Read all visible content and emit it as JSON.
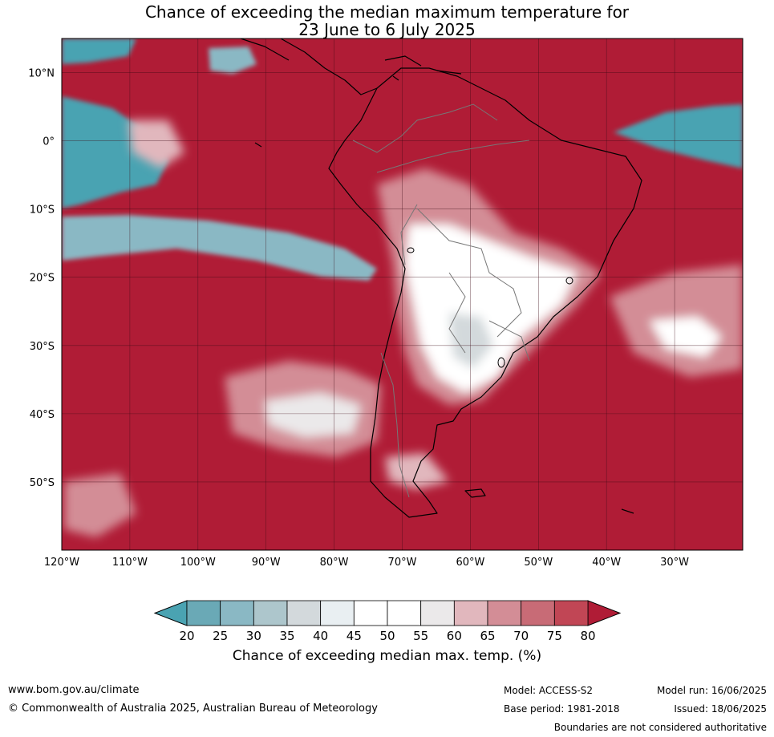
{
  "title": {
    "line1": "Chance of exceeding the median maximum temperature for",
    "line2": "23 June to 6 July 2025"
  },
  "map": {
    "lon_range": [
      -120,
      -20
    ],
    "lat_range": [
      -60,
      15
    ],
    "lon_ticks": [
      {
        "value": -120,
        "label": "120°W"
      },
      {
        "value": -110,
        "label": "110°W"
      },
      {
        "value": -100,
        "label": "100°W"
      },
      {
        "value": -90,
        "label": "90°W"
      },
      {
        "value": -80,
        "label": "80°W"
      },
      {
        "value": -70,
        "label": "70°W"
      },
      {
        "value": -60,
        "label": "60°W"
      },
      {
        "value": -50,
        "label": "50°W"
      },
      {
        "value": -40,
        "label": "40°W"
      },
      {
        "value": -30,
        "label": "30°W"
      }
    ],
    "lat_ticks": [
      {
        "value": 10,
        "label": "10°N"
      },
      {
        "value": 0,
        "label": "0°"
      },
      {
        "value": -10,
        "label": "10°S"
      },
      {
        "value": -20,
        "label": "20°S"
      },
      {
        "value": -30,
        "label": "30°S"
      },
      {
        "value": -40,
        "label": "40°S"
      },
      {
        "value": -50,
        "label": "50°S"
      }
    ],
    "grid": true,
    "background_level_color": "#b01c36"
  },
  "colorbar": {
    "ticks": [
      "20",
      "25",
      "30",
      "35",
      "40",
      "45",
      "50",
      "55",
      "60",
      "65",
      "70",
      "75",
      "80"
    ],
    "colors": [
      "#6aa9b6",
      "#8ab8c4",
      "#adc6cc",
      "#d3d9dc",
      "#e9eff2",
      "#ffffff",
      "#ffffff",
      "#ebe9ea",
      "#e1b7bd",
      "#d38d96",
      "#c86b76",
      "#c14655"
    ],
    "under_color": "#4aa3b2",
    "over_color": "#b01c36",
    "label": "Chance of exceeding median max. temp. (%)"
  },
  "footer": {
    "website": "www.bom.gov.au/climate",
    "copyright": "© Commonwealth of Australia 2025, Australian Bureau of Meteorology",
    "model": "Model: ACCESS-S2",
    "base_period": "Base period: 1981-2018",
    "model_run": "Model run: 16/06/2025",
    "issued": "Issued: 18/06/2025",
    "disclaimer": "Boundaries are not considered authoritative"
  }
}
